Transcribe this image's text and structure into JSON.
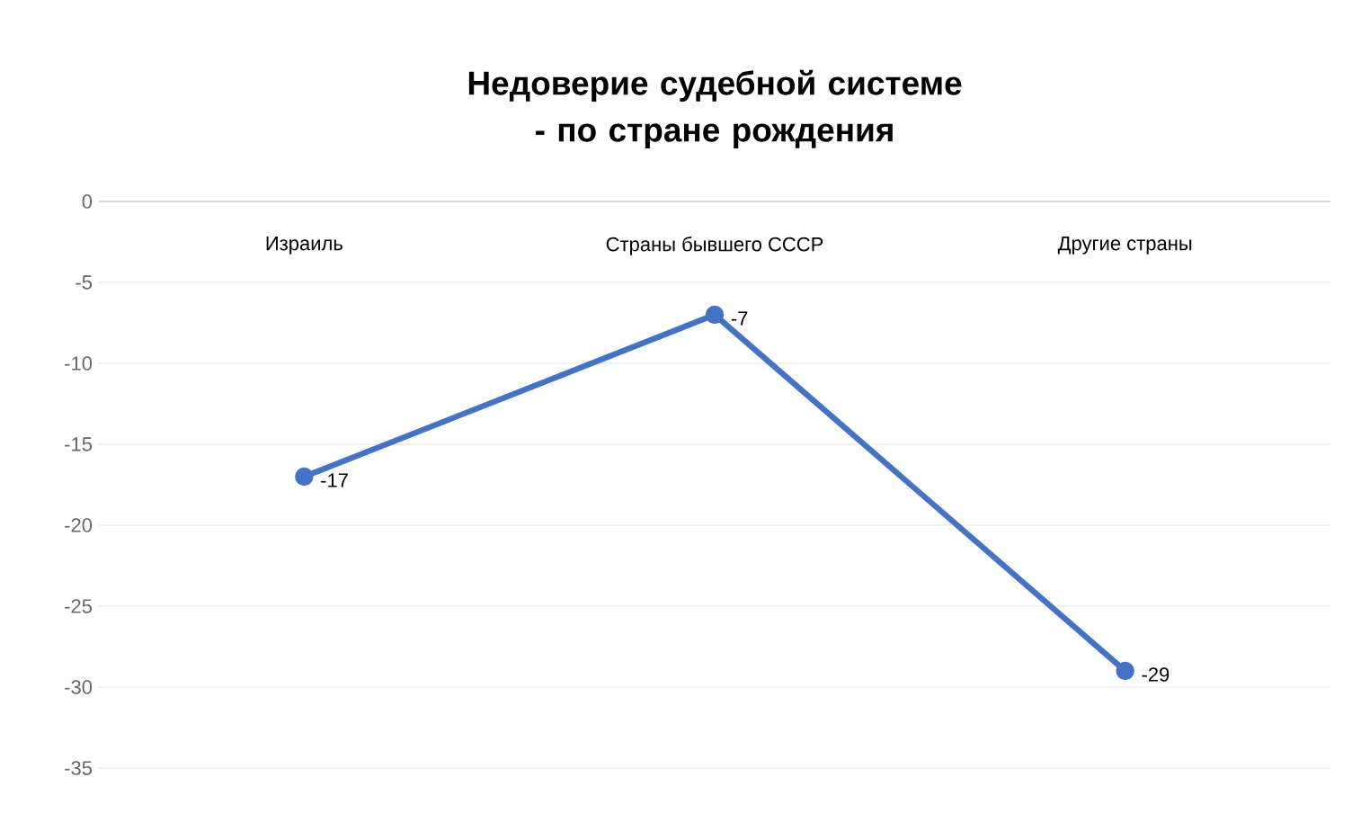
{
  "chart_data": {
    "type": "line",
    "title": "Недоверие судебной системе - по стране рождения",
    "categories": [
      "Израиль",
      "Страны бывшего СССР",
      "Другие страны"
    ],
    "series": [
      {
        "color": "#4472c4",
        "values": [
          -17,
          -7,
          -29
        ]
      }
    ],
    "ylim": [
      -35,
      0
    ],
    "yticks": [
      0,
      -5,
      -10,
      -15,
      -20,
      -25,
      -30,
      -35
    ],
    "grid": "y",
    "marker": "circle",
    "line_style": "solid",
    "data_labels": true
  }
}
